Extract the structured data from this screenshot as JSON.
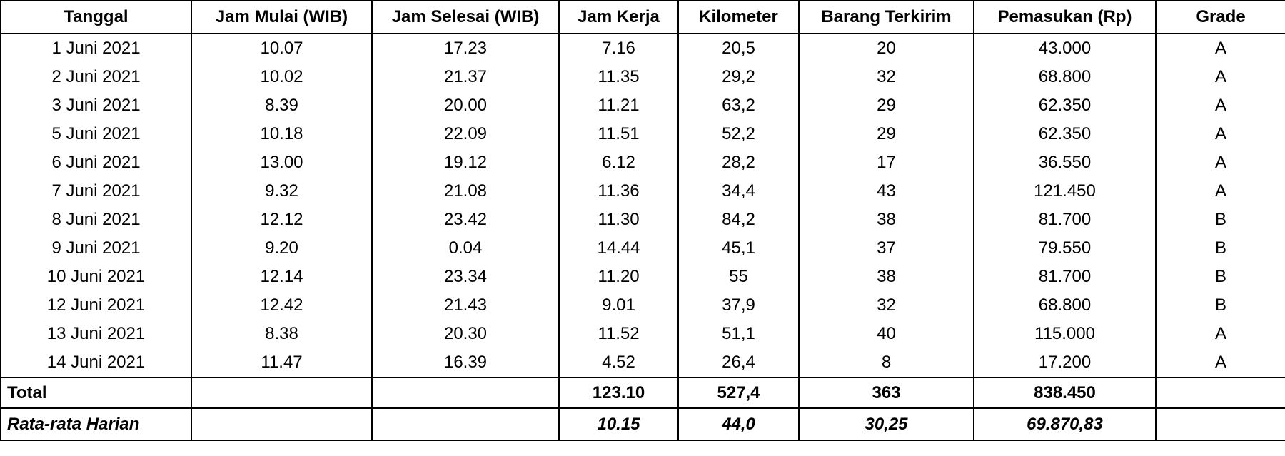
{
  "table": {
    "header": [
      "Tanggal",
      "Jam Mulai (WIB)",
      "Jam Selesai (WIB)",
      "Jam Kerja",
      "Kilometer",
      "Barang Terkirim",
      "Pemasukan (Rp)",
      "Grade"
    ],
    "rows": [
      [
        "1 Juni 2021",
        "10.07",
        "17.23",
        "7.16",
        "20,5",
        "20",
        "43.000",
        "A"
      ],
      [
        "2 Juni 2021",
        "10.02",
        "21.37",
        "11.35",
        "29,2",
        "32",
        "68.800",
        "A"
      ],
      [
        "3 Juni 2021",
        "8.39",
        "20.00",
        "11.21",
        "63,2",
        "29",
        "62.350",
        "A"
      ],
      [
        "5 Juni 2021",
        "10.18",
        "22.09",
        "11.51",
        "52,2",
        "29",
        "62.350",
        "A"
      ],
      [
        "6 Juni 2021",
        "13.00",
        "19.12",
        "6.12",
        "28,2",
        "17",
        "36.550",
        "A"
      ],
      [
        "7 Juni 2021",
        "9.32",
        "21.08",
        "11.36",
        "34,4",
        "43",
        "121.450",
        "A"
      ],
      [
        "8 Juni 2021",
        "12.12",
        "23.42",
        "11.30",
        "84,2",
        "38",
        "81.700",
        "B"
      ],
      [
        "9 Juni 2021",
        "9.20",
        "0.04",
        "14.44",
        "45,1",
        "37",
        "79.550",
        "B"
      ],
      [
        "10 Juni 2021",
        "12.14",
        "23.34",
        "11.20",
        "55",
        "38",
        "81.700",
        "B"
      ],
      [
        "12 Juni 2021",
        "12.42",
        "21.43",
        "9.01",
        "37,9",
        "32",
        "68.800",
        "B"
      ],
      [
        "13 Juni 2021",
        "8.38",
        "20.30",
        "11.52",
        "51,1",
        "40",
        "115.000",
        "A"
      ],
      [
        "14 Juni 2021",
        "11.47",
        "16.39",
        "4.52",
        "26,4",
        "8",
        "17.200",
        "A"
      ]
    ],
    "total": {
      "label": "Total",
      "jam_kerja": "123.10",
      "kilometer": "527,4",
      "barang_terkirim": "363",
      "pemasukan": "838.450"
    },
    "average": {
      "label": "Rata-rata Harian",
      "jam_kerja": "10.15",
      "kilometer": "44,0",
      "barang_terkirim": "30,25",
      "pemasukan": "69.870,83"
    }
  }
}
